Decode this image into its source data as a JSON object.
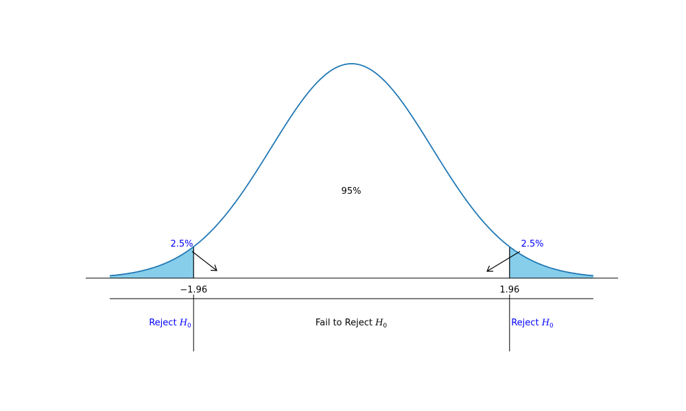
{
  "chart_data": {
    "type": "area",
    "distribution": "standard normal",
    "x_range": [
      -3,
      3
    ],
    "critical_values": [
      -1.96,
      1.96
    ],
    "tick_labels": [
      "−1.96",
      "1.96"
    ],
    "center_label": "95%",
    "tail_labels": [
      "2.5%",
      "2.5%"
    ],
    "regions": [
      {
        "label": "Reject",
        "subscript_symbol": "H",
        "subscript": "0"
      },
      {
        "label": "Fail to Reject",
        "subscript_symbol": "H",
        "subscript": "0"
      },
      {
        "label": "Reject",
        "subscript_symbol": "H",
        "subscript": "0"
      }
    ],
    "colors": {
      "curve": "#1f77b4",
      "tail_fill": "#87ceeb",
      "reject_text": "#0000ff",
      "axis": "#000000",
      "text": "#000000"
    }
  }
}
